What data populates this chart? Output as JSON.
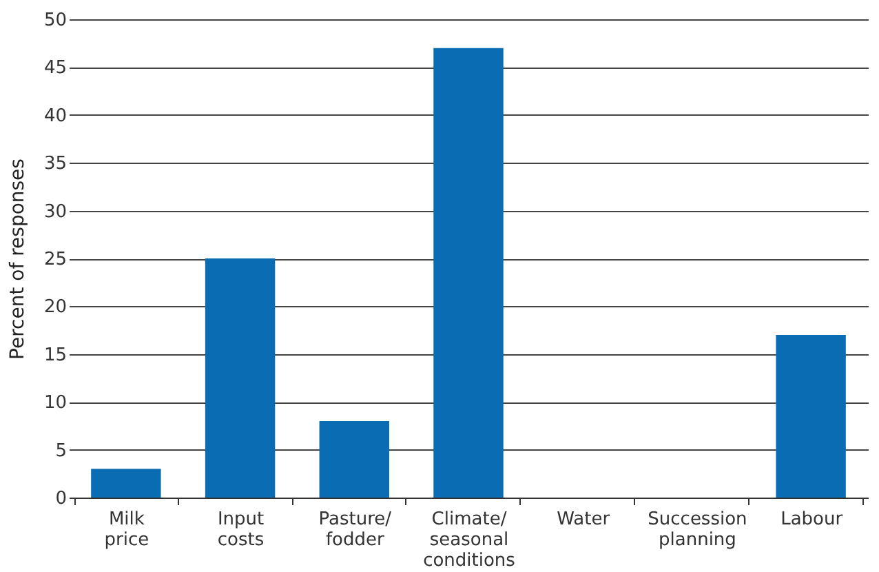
{
  "chart_data": {
    "type": "bar",
    "ylabel": "Percent of responses",
    "categories": [
      "Milk price",
      "Input costs",
      "Pasture/fodder",
      "Climate/seasonal conditions",
      "Water",
      "Succession planning",
      "Labour"
    ],
    "values": [
      3,
      25,
      8,
      47,
      0,
      0,
      17
    ],
    "color": "#0a6cb2",
    "ylim": [
      0,
      50
    ],
    "yticks": [
      0,
      5,
      10,
      15,
      20,
      25,
      30,
      35,
      40,
      45,
      50
    ],
    "grid": "y"
  }
}
